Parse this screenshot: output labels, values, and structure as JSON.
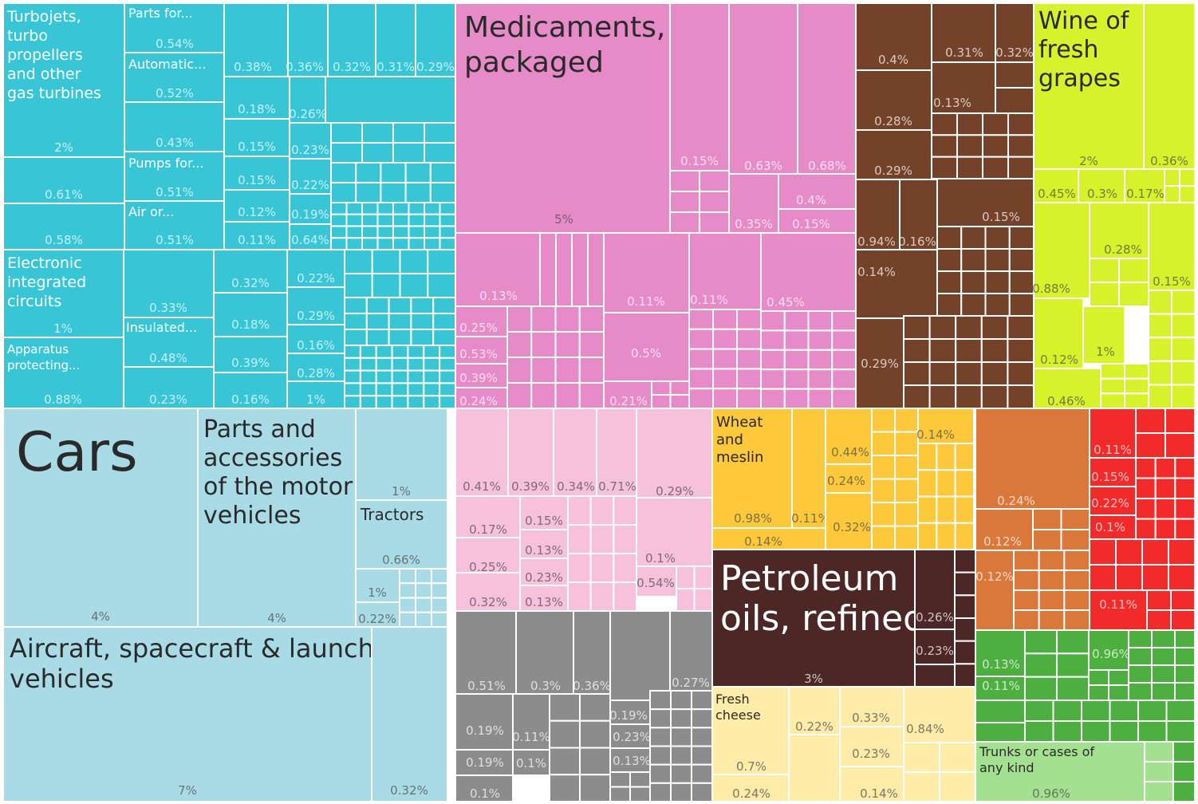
{
  "chart_data": {
    "type": "treemap",
    "title": "",
    "colors": {
      "machinery": "#38c6d6",
      "transportation": "#a9dbe6",
      "chemicals": "#e68bc7",
      "chemicals_light": "#f7c1dc",
      "wood_products": "#744129",
      "foodstuffs_drinks": "#d6f22a",
      "metals": "#8c8c8c",
      "vegetable_products": "#fdc93b",
      "mineral_products": "#4d2626",
      "animal_products": "#ffeca8",
      "textiles": "#d9783a",
      "instruments": "#f22a2a",
      "misc": "#4caf40",
      "misc_light": "#a3e08f"
    },
    "labeled_items": [
      {
        "label": "Turbojets, turbo propellers and other gas turbines",
        "share": "2%"
      },
      {
        "label": "Parts for...",
        "share": "0.54%"
      },
      {
        "label": "Automatic...",
        "share": "0.52%"
      },
      {
        "label": "Pumps for...",
        "share": "0.51%"
      },
      {
        "label": "Air or...",
        "share": "0.51%"
      },
      {
        "label": "Electronic integrated circuits",
        "share": "1%"
      },
      {
        "label": "Insulated...",
        "share": "0.48%"
      },
      {
        "label": "Apparatus protecting...",
        "share": "0.88%"
      },
      {
        "label": "Medicaments, packaged",
        "share": "5%"
      },
      {
        "label": "Wine of fresh grapes",
        "share": "2%"
      },
      {
        "label": "Cars",
        "share": "4%"
      },
      {
        "label": "Parts and accessories of the motor vehicles",
        "share": "4%"
      },
      {
        "label": "Tractors",
        "share": "0.66%"
      },
      {
        "label": "Aircraft, spacecraft & launch vehicles",
        "share": "7%"
      },
      {
        "label": "Wheat and meslin",
        "share": "0.98%"
      },
      {
        "label": "Petroleum oils, refined",
        "share": "3%"
      },
      {
        "label": "Fresh cheese",
        "share": "0.7%"
      },
      {
        "label": "Trunks or cases of any kind",
        "share": "0.96%"
      }
    ],
    "other_shares": [
      "0.61%",
      "0.58%",
      "0.43%",
      "0.38%",
      "0.36%",
      "0.32%",
      "0.31%",
      "0.29%",
      "0.18%",
      "0.26%",
      "0.15%",
      "0.23%",
      "0.15%",
      "0.22%",
      "0.12%",
      "0.19%",
      "0.11%",
      "0.64%",
      "0.33%",
      "0.23%",
      "0.32%",
      "0.22%",
      "0.18%",
      "0.29%",
      "0.16%",
      "0.39%",
      "0.28%",
      "0.16%",
      "1%",
      "1%",
      "1%",
      "0.22%",
      "0.32%",
      "0.15%",
      "0.63%",
      "0.68%",
      "0.35%",
      "0.4%",
      "0.15%",
      "0.13%",
      "0.11%",
      "0.11%",
      "0.45%",
      "0.25%",
      "0.53%",
      "0.39%",
      "0.24%",
      "0.5%",
      "0.21%",
      "0.4%",
      "0.31%",
      "0.32%",
      "0.28%",
      "0.13%",
      "0.29%",
      "0.94%",
      "0.16%",
      "0.15%",
      "0.14%",
      "0.29%",
      "0.36%",
      "0.45%",
      "0.3%",
      "0.17%",
      "0.28%",
      "0.88%",
      "0.15%",
      "0.12%",
      "1%",
      "0.46%",
      "0.41%",
      "0.39%",
      "0.34%",
      "0.71%",
      "0.29%",
      "0.17%",
      "0.15%",
      "0.25%",
      "0.13%",
      "0.32%",
      "0.23%",
      "0.13%",
      "0.1%",
      "0.54%",
      "0.51%",
      "0.3%",
      "0.36%",
      "0.15%",
      "0.27%",
      "0.19%",
      "0.11%",
      "0.19%",
      "0.1%",
      "0.1%",
      "0.19%",
      "0.23%",
      "0.13%",
      "0.11%",
      "0.14%",
      "0.44%",
      "0.24%",
      "0.32%",
      "0.14%",
      "0.26%",
      "0.23%",
      "0.24%",
      "0.22%",
      "0.33%",
      "0.84%",
      "0.23%",
      "0.14%",
      "0.24%",
      "0.12%",
      "0.12%",
      "0.11%",
      "0.15%",
      "0.22%",
      "0.1%",
      "0.11%",
      "0.13%",
      "0.11%",
      "0.96%"
    ]
  }
}
